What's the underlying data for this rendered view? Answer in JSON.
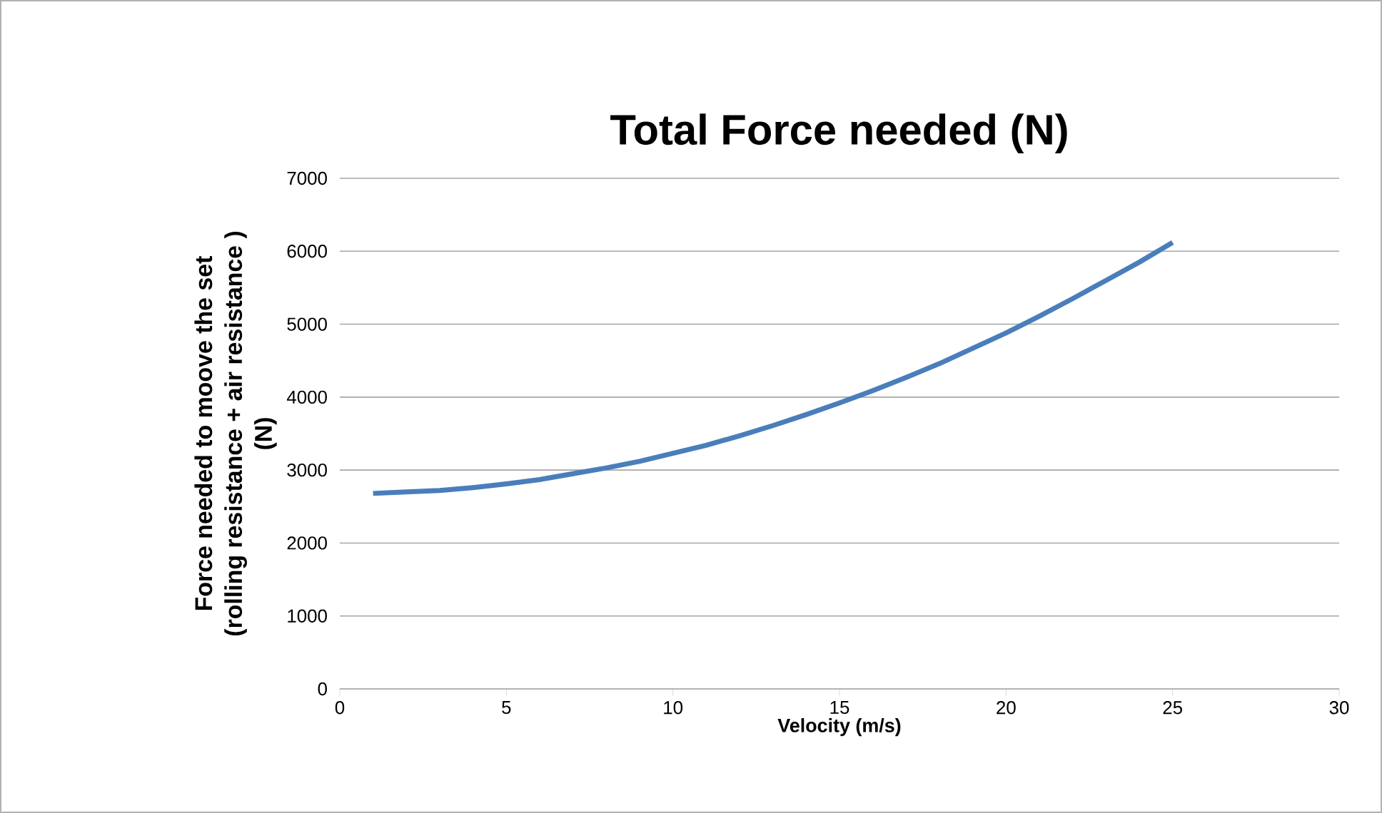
{
  "chart_data": {
    "type": "line",
    "title": "Total Force needed (N)",
    "xlabel": "Velocity (m/s)",
    "ylabel": "Force needed to moove the set (rolling resistance + air resistance ) (N)",
    "x": [
      1,
      2,
      3,
      4,
      5,
      6,
      7,
      8,
      9,
      10,
      11,
      12,
      13,
      14,
      15,
      16,
      17,
      18,
      19,
      20,
      21,
      22,
      23,
      24,
      25
    ],
    "series": [
      {
        "color": "#4a7ebb",
        "values": [
          2680,
          2700,
          2720,
          2760,
          2810,
          2870,
          2950,
          3030,
          3120,
          3230,
          3340,
          3470,
          3610,
          3760,
          3920,
          4090,
          4270,
          4460,
          4670,
          4880,
          5110,
          5350,
          5600,
          5850,
          6120
        ]
      }
    ],
    "xlim": [
      0,
      30
    ],
    "xticks": [
      0,
      5,
      10,
      15,
      20,
      25,
      30
    ],
    "ylim": [
      0,
      7000
    ],
    "yticks": [
      0,
      1000,
      2000,
      3000,
      4000,
      5000,
      6000,
      7000
    ],
    "grid": "y",
    "legend": false,
    "marker": "none",
    "line_style": "solid"
  }
}
